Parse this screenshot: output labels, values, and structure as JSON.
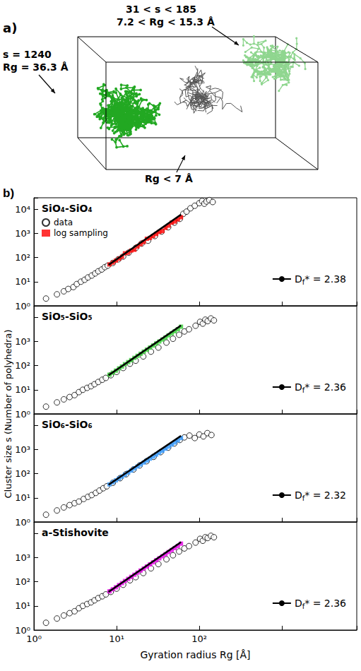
{
  "figure": {
    "panel_labels": [
      "a)",
      "b)"
    ],
    "panel_a": {
      "annotations": [
        "31 < s < 185",
        "7.2 < Rg < 15.3 Å",
        "s = 1240",
        "Rg = 36.3 Å",
        "Rg < 7 Å"
      ]
    }
  },
  "chart_data": [
    {
      "type": "scatter",
      "title": "SiO₄-SiO₄",
      "ylabel": "Cluster size s (Number of polyhedra)",
      "log": true,
      "grid": false,
      "legend": "upper left",
      "tick_labels": "y",
      "xlim": [
        1,
        8000
      ],
      "xticks": [
        {
          "value": 1,
          "label": "10⁰"
        },
        {
          "value": 10,
          "label": "10¹"
        },
        {
          "value": 100,
          "label": "10²"
        }
      ],
      "ylim": [
        1,
        30000
      ],
      "yticks": [
        {
          "value": 1,
          "label": "10⁰"
        },
        {
          "value": 10,
          "label": "10¹"
        },
        {
          "value": 100,
          "label": "10²"
        },
        {
          "value": 1000,
          "label": "10³"
        },
        {
          "value": 10000,
          "label": "10⁴"
        }
      ],
      "series": [
        {
          "name": "data",
          "marker": "open circle",
          "color": "#000000",
          "x": [
            1.4,
            1.9,
            2.3,
            2.6,
            3.0,
            3.3,
            3.7,
            4.1,
            4.5,
            5.0,
            5.5,
            6.0,
            6.6,
            7.2,
            7.8,
            9,
            10.5,
            12,
            14,
            17,
            20,
            24,
            29,
            35,
            42,
            50,
            58,
            64,
            70,
            78,
            88,
            100,
            108,
            115,
            122,
            132,
            145
          ],
          "values": [
            2,
            3,
            4,
            5,
            6,
            8,
            10,
            12,
            15,
            18,
            22,
            27,
            32,
            40,
            46,
            60,
            85,
            110,
            160,
            250,
            380,
            500,
            780,
            1200,
            1800,
            2800,
            4000,
            6500,
            8000,
            11000,
            14000,
            18000,
            22000,
            17000,
            21000,
            24000,
            20000
          ]
        },
        {
          "name": "log sampling",
          "marker": "square",
          "color": "#ff0000",
          "x": [
            8.2,
            9.0,
            9.8,
            10.7,
            11.6,
            12.6,
            13.8,
            15,
            16.4,
            17.9,
            19.5,
            21.3,
            23.2,
            25.3,
            27.6,
            30.1,
            32.8,
            35.8,
            39,
            42.5,
            46.3,
            50.5,
            55,
            60
          ],
          "values": [
            52,
            62,
            75,
            90,
            108,
            150,
            160,
            195,
            210,
            290,
            360,
            440,
            600,
            650,
            780,
            950,
            1150,
            1250,
            1700,
            2100,
            2800,
            3100,
            3800,
            4700
          ]
        },
        {
          "name": "Df* = 2.38",
          "type": "line",
          "color": "#000000",
          "x": [
            8,
            60
          ],
          "values": [
            50,
            6000
          ]
        }
      ]
    },
    {
      "type": "scatter",
      "title": "SiO₅-SiO₅",
      "log": true,
      "grid": false,
      "tick_labels": "y",
      "xlim": [
        1,
        8000
      ],
      "xticks": [
        {
          "value": 1,
          "label": "10⁰"
        },
        {
          "value": 10,
          "label": "10¹"
        },
        {
          "value": 100,
          "label": "10²"
        }
      ],
      "ylim": [
        1,
        30000
      ],
      "yticks": [
        {
          "value": 1,
          "label": "10⁰"
        },
        {
          "value": 10,
          "label": "10¹"
        },
        {
          "value": 100,
          "label": "10²"
        },
        {
          "value": 1000,
          "label": "10³"
        }
      ],
      "series": [
        {
          "marker": "open circle",
          "color": "#000000",
          "x": [
            1.4,
            1.9,
            2.3,
            2.7,
            3.1,
            3.5,
            3.9,
            4.4,
            4.9,
            5.4,
            6.0,
            6.7,
            7.4,
            8.5,
            10,
            12,
            14.5,
            17,
            21,
            26,
            32,
            40,
            48,
            57,
            66,
            75,
            90,
            102,
            110,
            118,
            126,
            138,
            150
          ],
          "values": [
            2,
            3,
            4,
            5,
            6,
            8,
            10,
            12,
            14,
            17,
            21,
            26,
            31,
            40,
            55,
            80,
            120,
            160,
            240,
            380,
            560,
            900,
            1300,
            1900,
            2600,
            3200,
            4500,
            6500,
            5500,
            8000,
            7000,
            9000,
            7500
          ]
        },
        {
          "marker": "square",
          "color": "#33cc33",
          "x": [
            8.2,
            9.0,
            9.8,
            10.7,
            11.6,
            12.6,
            13.8,
            15,
            16.4,
            17.9,
            19.5,
            21.3,
            23.2,
            25.3,
            27.6,
            30.1,
            32.8,
            35.8,
            39,
            42.5,
            46.3,
            50.5,
            55,
            60
          ],
          "values": [
            42,
            51,
            62,
            77,
            92,
            115,
            140,
            170,
            210,
            255,
            310,
            380,
            460,
            560,
            680,
            830,
            1000,
            1210,
            1470,
            1800,
            2200,
            2650,
            3250,
            4100
          ]
        },
        {
          "name": "Df* = 2.36",
          "type": "line",
          "color": "#000000",
          "x": [
            8,
            60
          ],
          "values": [
            40,
            4600
          ]
        }
      ]
    },
    {
      "type": "scatter",
      "title": "SiO₆-SiO₆",
      "log": true,
      "grid": false,
      "tick_labels": "y",
      "xlim": [
        1,
        8000
      ],
      "xticks": [
        {
          "value": 1,
          "label": "10⁰"
        },
        {
          "value": 10,
          "label": "10¹"
        },
        {
          "value": 100,
          "label": "10²"
        }
      ],
      "ylim": [
        1,
        30000
      ],
      "yticks": [
        {
          "value": 1,
          "label": "10⁰"
        },
        {
          "value": 10,
          "label": "10¹"
        },
        {
          "value": 100,
          "label": "10²"
        },
        {
          "value": 1000,
          "label": "10³"
        }
      ],
      "series": [
        {
          "marker": "open circle",
          "color": "#000000",
          "x": [
            1.4,
            1.9,
            2.3,
            2.7,
            3.1,
            3.5,
            4.0,
            4.5,
            5.0,
            5.6,
            6.2,
            6.9,
            7.6,
            9,
            11,
            13,
            16,
            19,
            23,
            28,
            34,
            42,
            50,
            58,
            66,
            76,
            88,
            100,
            112,
            125,
            140
          ],
          "values": [
            2,
            3,
            4,
            5,
            6,
            7,
            9,
            11,
            13,
            16,
            20,
            25,
            30,
            42,
            65,
            95,
            150,
            220,
            330,
            500,
            780,
            1200,
            1800,
            2500,
            3200,
            3800,
            3000,
            4200,
            3500,
            4800,
            4000
          ]
        },
        {
          "marker": "square",
          "color": "#3399ff",
          "x": [
            8.2,
            9.0,
            9.8,
            10.7,
            11.6,
            12.6,
            13.8,
            15,
            16.4,
            17.9,
            19.5,
            21.3,
            23.2,
            25.3,
            27.6,
            30.1,
            32.8,
            35.8,
            39,
            42.5,
            46.3,
            50.5,
            55,
            60
          ],
          "values": [
            36,
            44,
            53,
            64,
            76,
            92,
            112,
            135,
            165,
            200,
            240,
            290,
            350,
            420,
            510,
            620,
            750,
            900,
            1090,
            1320,
            1600,
            1950,
            2400,
            3000
          ]
        },
        {
          "name": "Df* = 2.32",
          "type": "line",
          "color": "#000000",
          "x": [
            8,
            60
          ],
          "values": [
            35,
            3700
          ]
        }
      ]
    },
    {
      "type": "scatter",
      "title": "a-Stishovite",
      "xlabel": "Gyration radius Rg [Å]",
      "log": true,
      "grid": false,
      "xlim": [
        1,
        8000
      ],
      "xticks": [
        {
          "value": 1,
          "label": "10⁰"
        },
        {
          "value": 10,
          "label": "10¹"
        },
        {
          "value": 100,
          "label": "10²"
        }
      ],
      "ylim": [
        1,
        30000
      ],
      "yticks": [
        {
          "value": 1,
          "label": "10⁰"
        },
        {
          "value": 10,
          "label": "10¹"
        },
        {
          "value": 100,
          "label": "10²"
        },
        {
          "value": 1000,
          "label": "10³"
        }
      ],
      "series": [
        {
          "marker": "open circle",
          "color": "#000000",
          "x": [
            1.4,
            1.9,
            2.3,
            2.7,
            3.1,
            3.5,
            3.9,
            4.4,
            4.9,
            5.4,
            6.0,
            6.7,
            7.4,
            8.5,
            10,
            12,
            14.5,
            17,
            21,
            26,
            32,
            40,
            48,
            57,
            66,
            75,
            90,
            102,
            110,
            118,
            126,
            138,
            150
          ],
          "values": [
            2,
            3,
            4,
            5,
            6,
            8,
            10,
            12,
            14,
            17,
            21,
            25,
            30,
            38,
            52,
            75,
            115,
            155,
            230,
            360,
            540,
            850,
            1250,
            1800,
            2400,
            3000,
            4200,
            6000,
            5000,
            7000,
            6500,
            8000,
            7000
          ]
        },
        {
          "marker": "square",
          "color": "#e600e6",
          "x": [
            8.2,
            9.0,
            9.8,
            10.7,
            11.6,
            12.6,
            13.8,
            15,
            16.4,
            17.9,
            19.5,
            21.3,
            23.2,
            25.3,
            27.6,
            30.1,
            32.8,
            35.8,
            39,
            42.5,
            46.3,
            50.5,
            55,
            60
          ],
          "values": [
            40,
            49,
            59,
            73,
            88,
            108,
            132,
            160,
            196,
            240,
            292,
            355,
            430,
            525,
            640,
            780,
            940,
            1140,
            1390,
            1700,
            2060,
            2500,
            3050,
            3800
          ]
        },
        {
          "name": "Df* = 2.36",
          "type": "line",
          "color": "#000000",
          "x": [
            8,
            60
          ],
          "values": [
            38,
            4400
          ]
        }
      ]
    }
  ]
}
